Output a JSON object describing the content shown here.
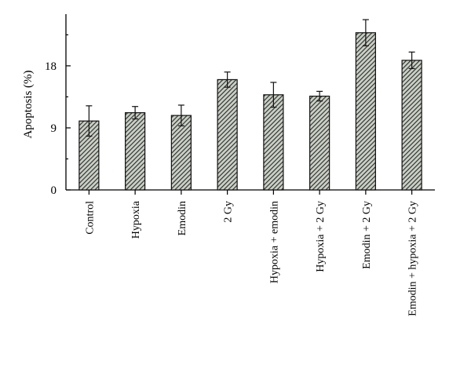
{
  "chart_data": {
    "type": "bar",
    "title": "",
    "xlabel": "",
    "ylabel": "Apoptosis (%)",
    "ylim": [
      0,
      25.5
    ],
    "yticks": [
      0,
      9,
      18
    ],
    "grid": false,
    "bar_fill": "dark-hatched",
    "categories": [
      "Control",
      "Hypoxia",
      "Emodin",
      "2 Gy",
      "Hypoxia + emodin",
      "Hypoxia + 2 Gy",
      "Emodin + 2 Gy",
      "Emodin + hypoxia + 2 Gy"
    ],
    "series": [
      {
        "values": [
          10.0,
          11.2,
          10.8,
          16.0,
          13.8,
          13.6,
          22.8,
          18.8
        ],
        "errors": [
          2.2,
          0.9,
          1.5,
          1.1,
          1.8,
          0.7,
          1.9,
          1.2
        ]
      }
    ]
  }
}
